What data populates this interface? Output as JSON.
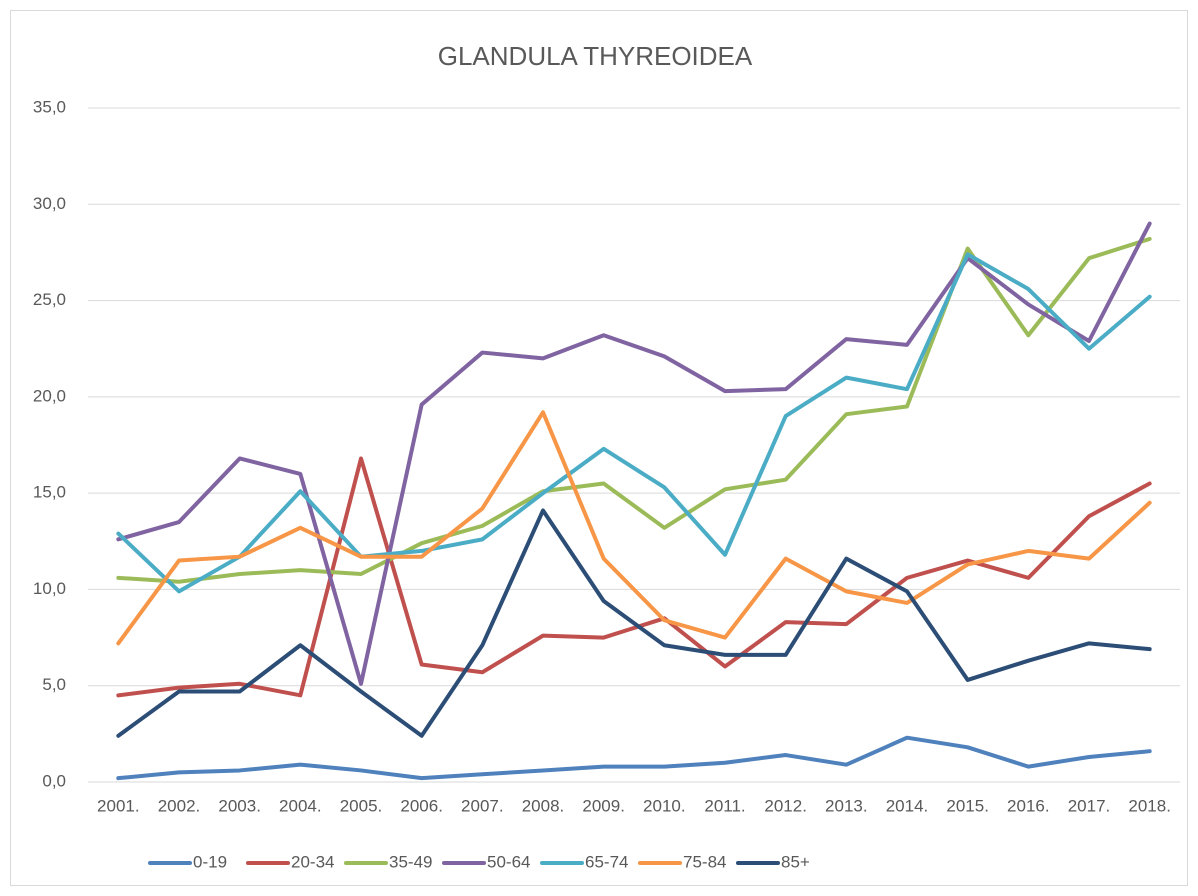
{
  "chart_data": {
    "type": "line",
    "title": "GLANDULA THYREOIDEA",
    "categories": [
      "2001.",
      "2002.",
      "2003.",
      "2004.",
      "2005.",
      "2006.",
      "2007.",
      "2008.",
      "2009.",
      "2010.",
      "2011.",
      "2012.",
      "2013.",
      "2014.",
      "2015.",
      "2016.",
      "2017.",
      "2018."
    ],
    "series": [
      {
        "name": "0-19",
        "color": "#4f81bd",
        "values": [
          0.2,
          0.5,
          0.6,
          0.9,
          0.6,
          0.2,
          0.4,
          0.6,
          0.8,
          0.8,
          1.0,
          1.4,
          0.9,
          2.3,
          1.8,
          0.8,
          1.3,
          1.6
        ]
      },
      {
        "name": "20-34",
        "color": "#c0504d",
        "values": [
          4.5,
          4.9,
          5.1,
          4.5,
          16.8,
          6.1,
          5.7,
          7.6,
          7.5,
          8.5,
          6.0,
          8.3,
          8.2,
          10.6,
          11.5,
          10.6,
          13.8,
          15.5
        ]
      },
      {
        "name": "35-49",
        "color": "#9bbb59",
        "values": [
          10.6,
          10.4,
          10.8,
          11.0,
          10.8,
          12.4,
          13.3,
          15.1,
          15.5,
          13.2,
          15.2,
          15.7,
          19.1,
          19.5,
          27.7,
          23.2,
          27.2,
          28.2
        ]
      },
      {
        "name": "50-64",
        "color": "#8064a2",
        "values": [
          12.6,
          13.5,
          16.8,
          16.0,
          5.1,
          19.6,
          22.3,
          22.0,
          23.2,
          22.1,
          20.3,
          20.4,
          23.0,
          22.7,
          27.2,
          24.8,
          22.9,
          29.0
        ]
      },
      {
        "name": "65-74",
        "color": "#4bacc6",
        "values": [
          12.9,
          9.9,
          11.7,
          15.1,
          11.7,
          12.0,
          12.6,
          15.0,
          17.3,
          15.3,
          11.8,
          19.0,
          21.0,
          20.4,
          27.4,
          25.6,
          22.5,
          25.2
        ]
      },
      {
        "name": "75-84",
        "color": "#f79646",
        "values": [
          7.2,
          11.5,
          11.7,
          13.2,
          11.7,
          11.7,
          14.2,
          19.2,
          11.6,
          8.4,
          7.5,
          11.6,
          9.9,
          9.3,
          11.3,
          12.0,
          11.6,
          14.5
        ]
      },
      {
        "name": "85+",
        "color": "#2c4d75",
        "values": [
          2.4,
          4.7,
          4.7,
          7.1,
          4.7,
          2.4,
          7.1,
          14.1,
          9.4,
          7.1,
          6.6,
          6.6,
          11.6,
          9.9,
          5.3,
          6.3,
          7.2,
          6.9
        ]
      }
    ],
    "ylim": [
      0,
      35
    ],
    "yticks": [
      {
        "value": 0,
        "label": "0,0"
      },
      {
        "value": 5,
        "label": "5,0"
      },
      {
        "value": 10,
        "label": "10,0"
      },
      {
        "value": 15,
        "label": "15,0"
      },
      {
        "value": 20,
        "label": "20,0"
      },
      {
        "value": 25,
        "label": "25,0"
      },
      {
        "value": 30,
        "label": "30,0"
      },
      {
        "value": 35,
        "label": "35,0"
      }
    ],
    "grid": true,
    "legend": "bottom"
  }
}
